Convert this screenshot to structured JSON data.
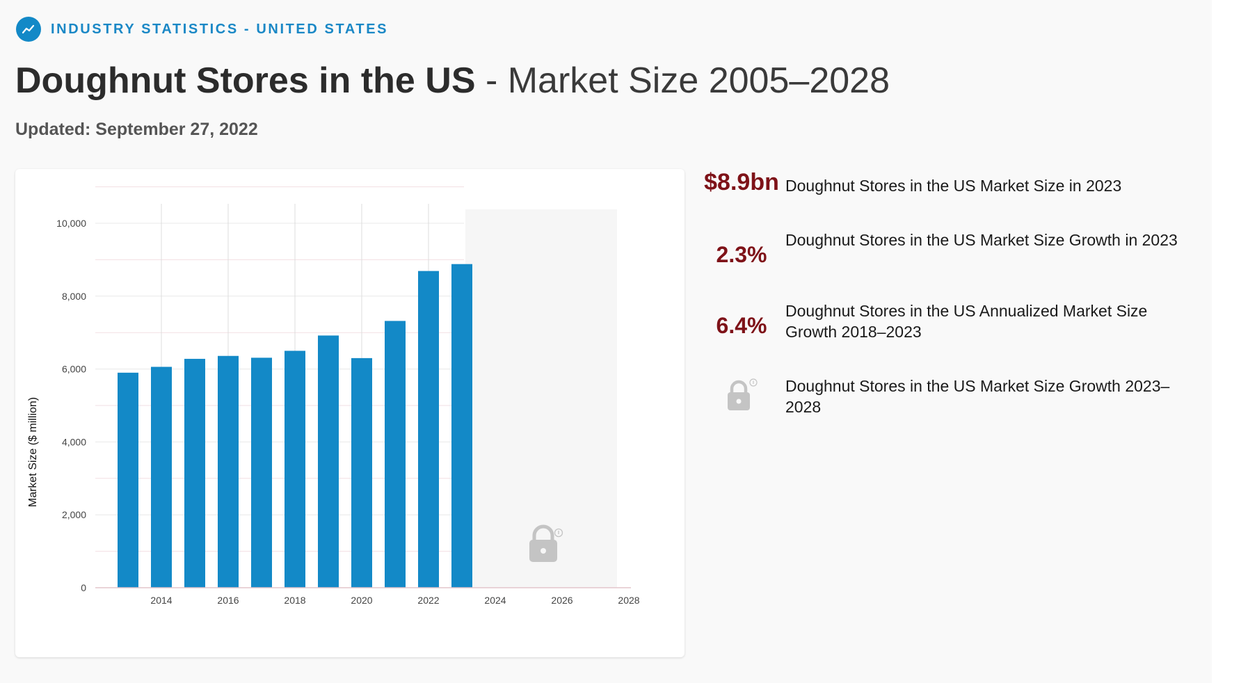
{
  "header": {
    "eyebrow": "INDUSTRY STATISTICS - UNITED STATES",
    "title_strong": "Doughnut Stores in the US",
    "title_rest": " - Market Size 2005–2028",
    "updated": "Updated: September 27, 2022"
  },
  "stats": [
    {
      "value": "$8.9bn",
      "label": "Doughnut Stores in the US Market Size in 2023"
    },
    {
      "value": "2.3%",
      "label": "Doughnut Stores in the US Market Size Growth in 2023"
    },
    {
      "value": "6.4%",
      "label": "Doughnut Stores in the US Annualized Market Size Growth 2018–2023"
    },
    {
      "value": null,
      "icon": "lock-icon",
      "label": "Doughnut Stores in the US Market Size Growth 2023–2028"
    }
  ],
  "colors": {
    "bar": "#1389c7",
    "accent": "#7e1218",
    "eyebrow": "#1a88c6"
  },
  "chart_data": {
    "type": "bar",
    "categories": [
      "2013",
      "2014",
      "2015",
      "2016",
      "2017",
      "2018",
      "2019",
      "2020",
      "2021",
      "2022",
      "2023"
    ],
    "values": [
      5900,
      6060,
      6280,
      6360,
      6310,
      6500,
      6920,
      6300,
      7320,
      8690,
      8880
    ],
    "xlabel": "",
    "ylabel": "Market Size ($ million)",
    "ylim": [
      0,
      10000
    ],
    "yticks": [
      0,
      2000,
      4000,
      6000,
      8000,
      10000
    ],
    "ytick_labels": [
      "0",
      "2,000",
      "4,000",
      "6,000",
      "8,000",
      "10,000"
    ],
    "xticks": [
      "2014",
      "2016",
      "2018",
      "2020",
      "2022",
      "2024",
      "2026",
      "2028"
    ],
    "xlim": [
      2012.5,
      2028.5
    ],
    "locked_range": [
      2024,
      2028
    ],
    "grid": true
  }
}
